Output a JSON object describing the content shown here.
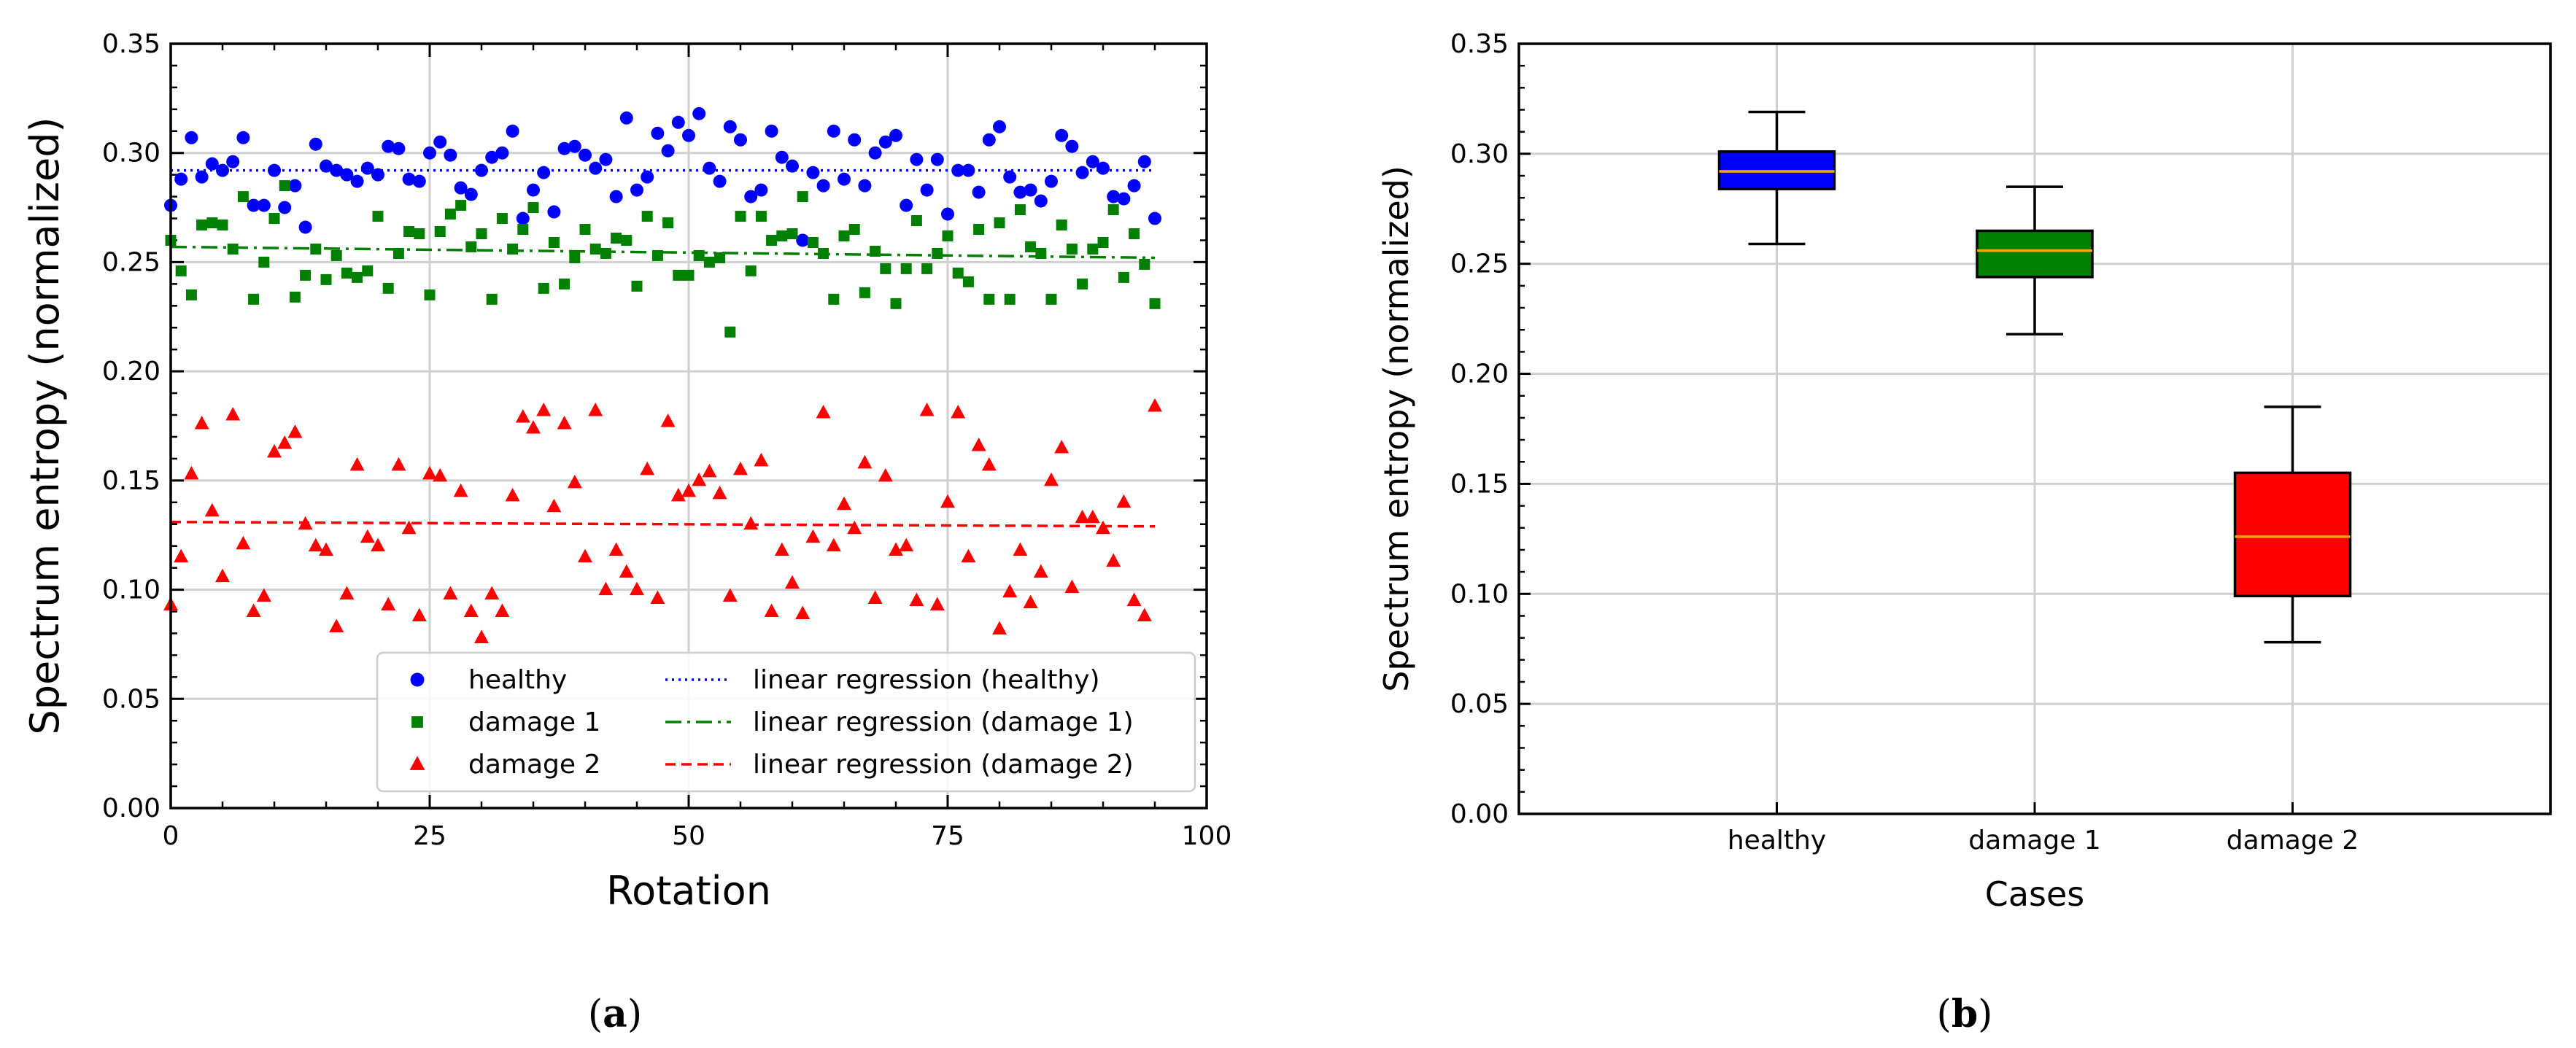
{
  "panels": {
    "a": {
      "caption_letter": "a",
      "caption_open": "(",
      "caption_close": ")"
    },
    "b": {
      "caption_letter": "b",
      "caption_open": "(",
      "caption_close": ")"
    }
  },
  "colors": {
    "healthy": "#0000ff",
    "damage1": "#008000",
    "damage2": "#ff0000",
    "median": "#ffa500",
    "grid": "#d0d0d0"
  },
  "chart_data": [
    {
      "type": "scatter",
      "panel": "a",
      "title": "",
      "xlabel": "Rotation",
      "ylabel": "Spectrum entropy (normalized)",
      "xlim": [
        0,
        100
      ],
      "ylim": [
        0,
        0.35
      ],
      "xticks": [
        0,
        25,
        50,
        75,
        100
      ],
      "xtick_labels": [
        "0",
        "25",
        "50",
        "75",
        "100"
      ],
      "yticks": [
        0,
        0.05,
        0.1,
        0.15,
        0.2,
        0.25,
        0.3,
        0.35
      ],
      "ytick_labels": [
        "0.00",
        "0.05",
        "0.10",
        "0.15",
        "0.20",
        "0.25",
        "0.30",
        "0.35"
      ],
      "grid": true,
      "legend_position": "bottom-right",
      "series": [
        {
          "name": "healthy",
          "key": "healthy",
          "marker": "circle",
          "x": [
            0,
            1,
            2,
            3,
            4,
            5,
            6,
            7,
            8,
            9,
            10,
            11,
            12,
            13,
            14,
            15,
            16,
            17,
            18,
            19,
            20,
            21,
            22,
            23,
            24,
            25,
            26,
            27,
            28,
            29,
            30,
            31,
            32,
            33,
            34,
            35,
            36,
            37,
            38,
            39,
            40,
            41,
            42,
            43,
            44,
            45,
            46,
            47,
            48,
            49,
            50,
            51,
            52,
            53,
            54,
            55,
            56,
            57,
            58,
            59,
            60,
            61,
            62,
            63,
            64,
            65,
            66,
            67,
            68,
            69,
            70,
            71,
            72,
            73,
            74,
            75,
            76,
            77,
            78,
            79,
            80,
            81,
            82,
            83,
            84,
            85,
            86,
            87,
            88,
            89,
            90,
            91,
            92,
            93,
            94,
            95
          ],
          "y": [
            0.276,
            0.288,
            0.307,
            0.289,
            0.295,
            0.292,
            0.296,
            0.307,
            0.276,
            0.276,
            0.292,
            0.275,
            0.285,
            0.266,
            0.304,
            0.294,
            0.292,
            0.29,
            0.287,
            0.293,
            0.29,
            0.303,
            0.302,
            0.288,
            0.287,
            0.3,
            0.305,
            0.299,
            0.284,
            0.281,
            0.292,
            0.298,
            0.3,
            0.31,
            0.27,
            0.283,
            0.291,
            0.273,
            0.302,
            0.303,
            0.299,
            0.293,
            0.297,
            0.28,
            0.316,
            0.283,
            0.289,
            0.309,
            0.301,
            0.314,
            0.308,
            0.318,
            0.293,
            0.287,
            0.312,
            0.306,
            0.28,
            0.283,
            0.31,
            0.298,
            0.294,
            0.26,
            0.291,
            0.285,
            0.31,
            0.288,
            0.306,
            0.285,
            0.3,
            0.305,
            0.308,
            0.276,
            0.297,
            0.283,
            0.297,
            0.272,
            0.292,
            0.292,
            0.282,
            0.306,
            0.312,
            0.289,
            0.282,
            0.283,
            0.278,
            0.287,
            0.308,
            0.303,
            0.291,
            0.296,
            0.293,
            0.28,
            0.279,
            0.285,
            0.296,
            0.27
          ]
        },
        {
          "name": "damage 1",
          "key": "damage1",
          "marker": "square",
          "x": [
            0,
            1,
            2,
            3,
            4,
            5,
            6,
            7,
            8,
            9,
            10,
            11,
            12,
            13,
            14,
            15,
            16,
            17,
            18,
            19,
            20,
            21,
            22,
            23,
            24,
            25,
            26,
            27,
            28,
            29,
            30,
            31,
            32,
            33,
            34,
            35,
            36,
            37,
            38,
            39,
            40,
            41,
            42,
            43,
            44,
            45,
            46,
            47,
            48,
            49,
            50,
            51,
            52,
            53,
            54,
            55,
            56,
            57,
            58,
            59,
            60,
            61,
            62,
            63,
            64,
            65,
            66,
            67,
            68,
            69,
            70,
            71,
            72,
            73,
            74,
            75,
            76,
            77,
            78,
            79,
            80,
            81,
            82,
            83,
            84,
            85,
            86,
            87,
            88,
            89,
            90,
            91,
            92,
            93,
            94,
            95
          ],
          "y": [
            0.26,
            0.246,
            0.235,
            0.267,
            0.268,
            0.267,
            0.256,
            0.28,
            0.233,
            0.25,
            0.27,
            0.285,
            0.234,
            0.244,
            0.256,
            0.242,
            0.253,
            0.245,
            0.243,
            0.246,
            0.271,
            0.238,
            0.254,
            0.264,
            0.263,
            0.235,
            0.264,
            0.272,
            0.276,
            0.257,
            0.263,
            0.233,
            0.27,
            0.256,
            0.265,
            0.275,
            0.238,
            0.259,
            0.24,
            0.252,
            0.265,
            0.256,
            0.254,
            0.261,
            0.26,
            0.239,
            0.271,
            0.253,
            0.268,
            0.244,
            0.244,
            0.253,
            0.25,
            0.252,
            0.218,
            0.271,
            0.246,
            0.271,
            0.26,
            0.262,
            0.263,
            0.28,
            0.259,
            0.254,
            0.233,
            0.262,
            0.265,
            0.236,
            0.255,
            0.247,
            0.231,
            0.247,
            0.269,
            0.247,
            0.254,
            0.262,
            0.245,
            0.241,
            0.265,
            0.233,
            0.268,
            0.233,
            0.274,
            0.257,
            0.254,
            0.233,
            0.267,
            0.256,
            0.24,
            0.256,
            0.259,
            0.274,
            0.243,
            0.263,
            0.249,
            0.231
          ]
        },
        {
          "name": "damage 2",
          "key": "damage2",
          "marker": "triangle",
          "x": [
            0,
            1,
            2,
            3,
            4,
            5,
            6,
            7,
            8,
            9,
            10,
            11,
            12,
            13,
            14,
            15,
            16,
            17,
            18,
            19,
            20,
            21,
            22,
            23,
            24,
            25,
            26,
            27,
            28,
            29,
            30,
            31,
            32,
            33,
            34,
            35,
            36,
            37,
            38,
            39,
            40,
            41,
            42,
            43,
            44,
            45,
            46,
            47,
            48,
            49,
            50,
            51,
            52,
            53,
            54,
            55,
            56,
            57,
            58,
            59,
            60,
            61,
            62,
            63,
            64,
            65,
            66,
            67,
            68,
            69,
            70,
            71,
            72,
            73,
            74,
            75,
            76,
            77,
            78,
            79,
            80,
            81,
            82,
            83,
            84,
            85,
            86,
            87,
            88,
            89,
            90,
            91,
            92,
            93,
            94,
            95
          ],
          "y": [
            0.093,
            0.115,
            0.153,
            0.176,
            0.136,
            0.106,
            0.18,
            0.121,
            0.09,
            0.097,
            0.163,
            0.167,
            0.172,
            0.13,
            0.12,
            0.118,
            0.083,
            0.098,
            0.157,
            0.124,
            0.12,
            0.093,
            0.157,
            0.128,
            0.088,
            0.153,
            0.152,
            0.098,
            0.145,
            0.09,
            0.078,
            0.098,
            0.09,
            0.143,
            0.179,
            0.174,
            0.182,
            0.138,
            0.176,
            0.149,
            0.115,
            0.182,
            0.1,
            0.118,
            0.108,
            0.1,
            0.155,
            0.096,
            0.177,
            0.143,
            0.145,
            0.15,
            0.154,
            0.144,
            0.097,
            0.155,
            0.13,
            0.159,
            0.09,
            0.118,
            0.103,
            0.089,
            0.124,
            0.181,
            0.12,
            0.139,
            0.128,
            0.158,
            0.096,
            0.152,
            0.118,
            0.12,
            0.095,
            0.182,
            0.093,
            0.14,
            0.181,
            0.115,
            0.166,
            0.157,
            0.082,
            0.099,
            0.118,
            0.094,
            0.108,
            0.15,
            0.165,
            0.101,
            0.133,
            0.133,
            0.128,
            0.113,
            0.14,
            0.095,
            0.088,
            0.184
          ]
        }
      ],
      "regression": [
        {
          "name": "linear regression (healthy)",
          "key": "healthy",
          "dash": "dotted",
          "x": [
            0,
            95
          ],
          "y": [
            0.292,
            0.292
          ]
        },
        {
          "name": "linear regression (damage 1)",
          "key": "damage1",
          "dash": "dashdot",
          "x": [
            0,
            95
          ],
          "y": [
            0.257,
            0.252
          ]
        },
        {
          "name": "linear regression (damage 2)",
          "key": "damage2",
          "dash": "dashed",
          "x": [
            0,
            95
          ],
          "y": [
            0.131,
            0.129
          ]
        }
      ]
    },
    {
      "type": "box",
      "panel": "b",
      "title": "",
      "xlabel": "Cases",
      "ylabel": "Spectrum entropy (normalized)",
      "ylim": [
        0,
        0.35
      ],
      "yticks": [
        0,
        0.05,
        0.1,
        0.15,
        0.2,
        0.25,
        0.3,
        0.35
      ],
      "ytick_labels": [
        "0.00",
        "0.05",
        "0.10",
        "0.15",
        "0.20",
        "0.25",
        "0.30",
        "0.35"
      ],
      "grid": true,
      "categories": [
        "healthy",
        "damage 1",
        "damage 2"
      ],
      "boxes": [
        {
          "category": "healthy",
          "key": "healthy",
          "whisker_low": 0.259,
          "q1": 0.284,
          "median": 0.292,
          "q3": 0.301,
          "whisker_high": 0.319
        },
        {
          "category": "damage 1",
          "key": "damage1",
          "whisker_low": 0.218,
          "q1": 0.244,
          "median": 0.256,
          "q3": 0.265,
          "whisker_high": 0.285
        },
        {
          "category": "damage 2",
          "key": "damage2",
          "whisker_low": 0.078,
          "q1": 0.099,
          "median": 0.126,
          "q3": 0.155,
          "whisker_high": 0.185
        }
      ]
    }
  ]
}
